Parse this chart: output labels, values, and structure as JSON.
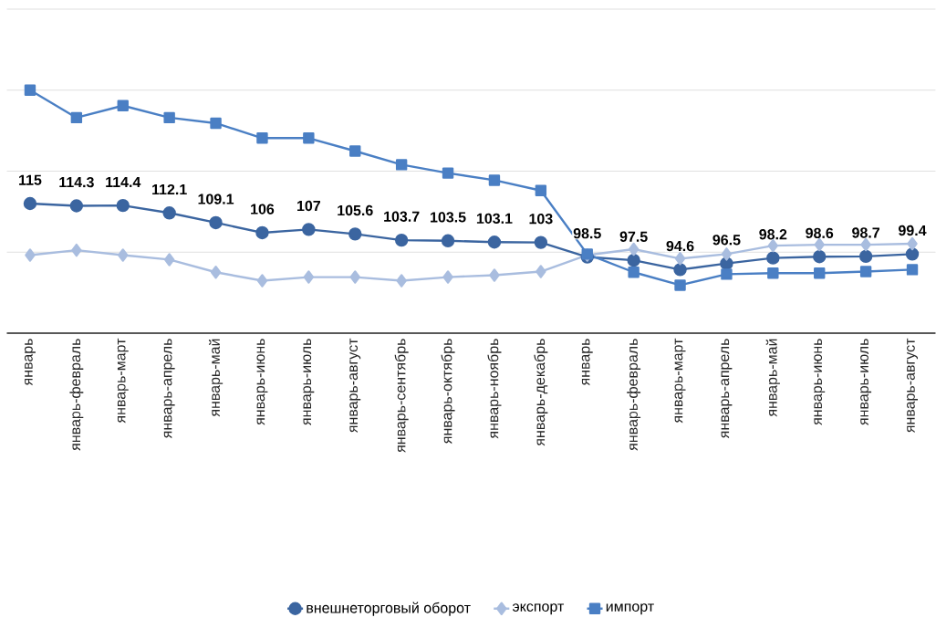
{
  "chart_data": {
    "type": "line",
    "categories": [
      "январь",
      "январь-февраль",
      "январь-март",
      "январь-апрель",
      "январь-май",
      "январь-июнь",
      "январь-июль",
      "январь-август",
      "январь-сентябрь",
      "январь-октябрь",
      "январь-ноябрь",
      "январь-декабрь",
      "январь",
      "январь-февраль",
      "январь-март",
      "январь-апрель",
      "январь-май",
      "январь-июнь",
      "январь-июль",
      "январь-август"
    ],
    "series": [
      {
        "name": "внешнеторговый оборот",
        "color": "#3b65a0",
        "marker": "circle",
        "values": [
          115,
          114.3,
          114.4,
          112.1,
          109.1,
          106,
          107,
          105.6,
          103.7,
          103.5,
          103.1,
          103,
          98.5,
          97.5,
          94.6,
          96.5,
          98.2,
          98.6,
          98.7,
          99.4
        ],
        "value_labels": [
          "115",
          "114.3",
          "114.4",
          "112.1",
          "109.1",
          "106",
          "107",
          "105.6",
          "103.7",
          "103.5",
          "103.1",
          "103",
          "98.5",
          "97.5",
          "94.6",
          "96.5",
          "98.2",
          "98.6",
          "98.7",
          "99.4"
        ]
      },
      {
        "name": "экспорт",
        "color": "#a9bddf",
        "marker": "diamond",
        "values": [
          99.1,
          100.6,
          99.1,
          97.7,
          93.8,
          91.2,
          92.3,
          92.3,
          91.2,
          92.3,
          92.9,
          94.0,
          99.1,
          100.9,
          98.0,
          99.4,
          102.0,
          102.3,
          102.3,
          102.6
        ]
      },
      {
        "name": "импорт",
        "color": "#4a7fc4",
        "marker": "square",
        "values": [
          150.0,
          141.5,
          145.2,
          141.5,
          139.8,
          135.2,
          135.2,
          131.2,
          127.0,
          124.4,
          122.2,
          119.0,
          99.4,
          93.8,
          89.8,
          93.2,
          93.5,
          93.5,
          94.0,
          94.6
        ]
      }
    ],
    "ylim": [
      75,
      175
    ],
    "yticks": [
      {
        "value": 75,
        "label": null
      },
      {
        "value": 100,
        "label": null
      },
      {
        "value": 125,
        "label": null
      },
      {
        "value": 150,
        "label": null
      },
      {
        "value": 175,
        "label": null
      }
    ],
    "tick_labels": "x",
    "grid": "y",
    "legend": "bottom",
    "line_style": "solid"
  }
}
